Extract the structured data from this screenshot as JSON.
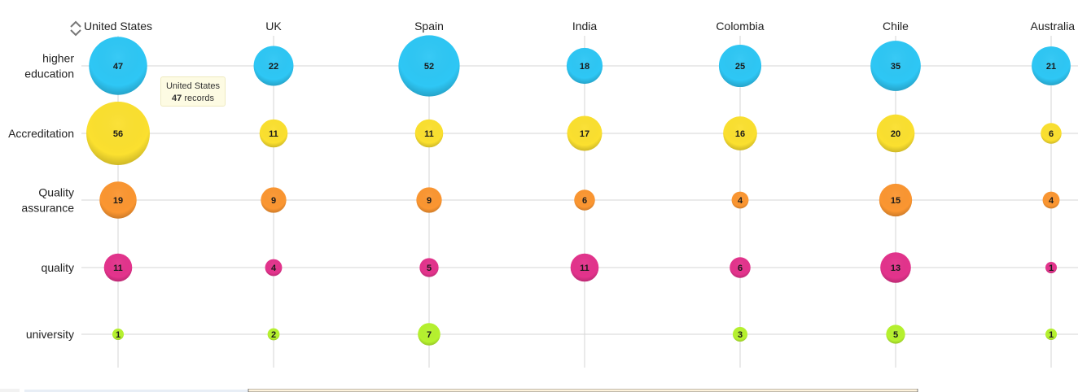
{
  "chart_data": {
    "type": "bubble-matrix",
    "columns": [
      "United States",
      "UK",
      "Spain",
      "India",
      "Colombia",
      "Chile",
      "Australia"
    ],
    "rows": [
      {
        "label_lines": [
          "higher",
          "education"
        ],
        "color": "#2ec7f5",
        "values": [
          47,
          22,
          52,
          18,
          25,
          35,
          21
        ]
      },
      {
        "label_lines": [
          "Accreditation"
        ],
        "color": "#fbe02f",
        "values": [
          56,
          11,
          11,
          17,
          16,
          20,
          6
        ]
      },
      {
        "label_lines": [
          "Quality",
          "assurance"
        ],
        "color": "#fb9631",
        "values": [
          19,
          9,
          9,
          6,
          4,
          15,
          4
        ]
      },
      {
        "label_lines": [
          "quality"
        ],
        "color": "#e3338c",
        "values": [
          11,
          4,
          5,
          11,
          6,
          13,
          1
        ]
      },
      {
        "label_lines": [
          "university"
        ],
        "color": "#b6f22e",
        "values": [
          1,
          2,
          7,
          null,
          3,
          5,
          1
        ]
      }
    ]
  },
  "tooltip": {
    "country": "United States",
    "count": "47",
    "suffix": "records"
  },
  "icons": {
    "corner": "resize-icon"
  }
}
